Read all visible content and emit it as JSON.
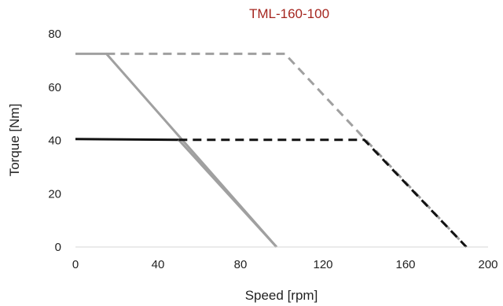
{
  "chart_data": {
    "type": "line",
    "title": "TML-160-100",
    "xlabel": "Speed [rpm]",
    "ylabel": "Torque [Nm]",
    "xlim": [
      0,
      200
    ],
    "ylim": [
      0,
      80
    ],
    "xticks": [
      "0",
      "40",
      "80",
      "120",
      "160",
      "200"
    ],
    "yticks": [
      "0",
      "20",
      "40",
      "60",
      "80"
    ],
    "xtick_values": [
      0,
      40,
      80,
      120,
      160,
      200
    ],
    "ytick_values": [
      0,
      20,
      40,
      60,
      80
    ],
    "grid": false,
    "legend": "none",
    "series": [
      {
        "color": "#a0a0a0",
        "dash": "solid",
        "points": [
          [
            0,
            72.5
          ],
          [
            15,
            72.5
          ],
          [
            97.5,
            0
          ]
        ]
      },
      {
        "color": "#111111",
        "dash": "solid",
        "points": [
          [
            0,
            40.5
          ],
          [
            50,
            40.2
          ]
        ]
      },
      {
        "color": "#a0a0a0",
        "dash": "solid",
        "points": [
          [
            50,
            40.2
          ],
          [
            97.5,
            0
          ]
        ]
      },
      {
        "color": "#a0a0a0",
        "dash": "dashed",
        "points": [
          [
            15,
            72.5
          ],
          [
            101.5,
            72.5
          ],
          [
            189.5,
            0
          ]
        ]
      },
      {
        "color": "#111111",
        "dash": "dashed",
        "points": [
          [
            50,
            40.2
          ],
          [
            140,
            40.2
          ],
          [
            189.5,
            0
          ]
        ]
      }
    ]
  }
}
